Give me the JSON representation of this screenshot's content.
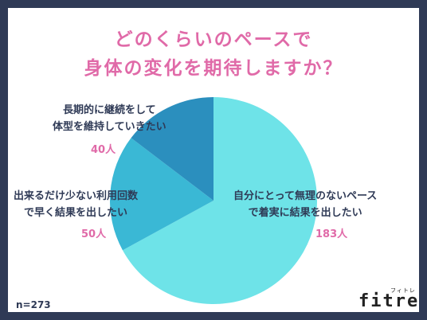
{
  "title": {
    "line1": "どのくらいのペースで",
    "line2": "身体の変化を期待しますか？"
  },
  "chart_data": {
    "type": "pie",
    "slices": [
      {
        "label_lines": [
          "自分にとって無理のないペース",
          "で着実に結果を出したい"
        ],
        "count_label": "183人",
        "value": 183,
        "color": "#6ee3e8"
      },
      {
        "label_lines": [
          "出来るだけ少ない利用回数",
          "で早く結果を出したい"
        ],
        "count_label": "50人",
        "value": 50,
        "color": "#3ab8d5"
      },
      {
        "label_lines": [
          "長期的に継続をして",
          "体型を維持していきたい"
        ],
        "count_label": "40人",
        "value": 40,
        "color": "#2b8fbe"
      }
    ],
    "total_label": "n=273"
  },
  "brand": {
    "logo": "fitre",
    "logo_kana": "フィトレ"
  }
}
